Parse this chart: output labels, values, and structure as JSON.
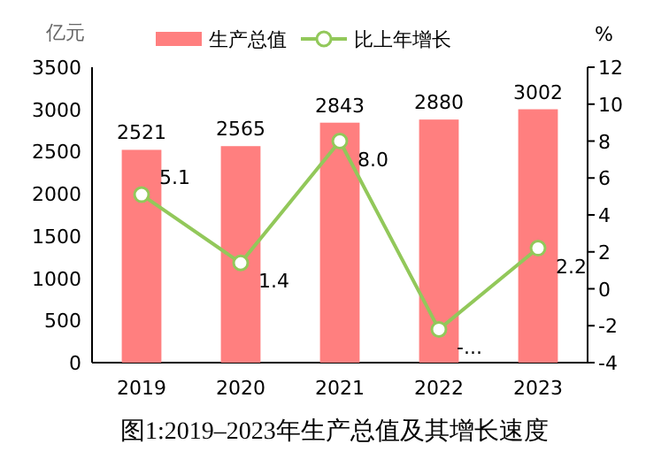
{
  "chart_data": {
    "type": "bar",
    "title": "图1:2019–2023年生产总值及其增长速度",
    "ylabel": "亿元",
    "y2label": "%",
    "categories": [
      "2019",
      "2020",
      "2021",
      "2022",
      "2023"
    ],
    "series": [
      {
        "name": "生产总值",
        "color": "#ff7f7f",
        "values": [
          2521,
          2565,
          2843,
          2880,
          3002
        ],
        "value_labels": [
          "2521",
          "2565",
          "2843",
          "2880",
          "3002"
        ]
      },
      {
        "name": "比上年增长",
        "type": "line",
        "axis": "y2",
        "color": "#92c85a",
        "marker": "circle",
        "values": [
          5.1,
          1.4,
          8.0,
          -2.2,
          2.2
        ],
        "value_labels": [
          "5.1",
          "1.4",
          "8.0",
          "-...",
          "2.2"
        ]
      }
    ],
    "ylim": [
      0,
      3500
    ],
    "yticks": [
      0,
      500,
      1000,
      1500,
      2000,
      2500,
      3000,
      3500
    ],
    "y2lim": [
      -4,
      12
    ],
    "y2ticks": [
      -4,
      -2,
      0,
      2,
      4,
      6,
      8,
      10,
      12
    ],
    "legend": "top",
    "grid": false
  }
}
